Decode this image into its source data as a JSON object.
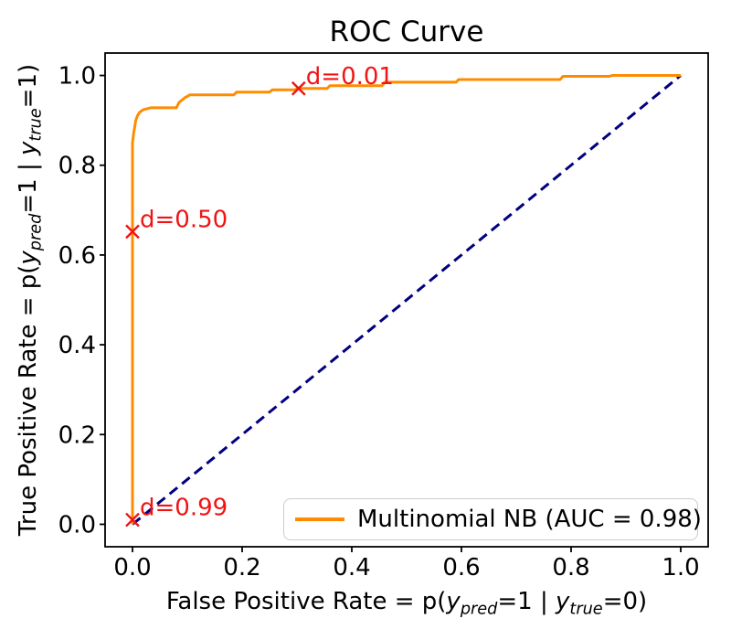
{
  "title": "ROC Curve",
  "colors": {
    "roc_curve": "#ff8c00",
    "chance_line": "#000080",
    "annotation": "#f01414",
    "axis": "#000000",
    "tick_text": "#000000",
    "legend_border": "#cccccc",
    "background": "#ffffff"
  },
  "legend": {
    "label": "Multinomial NB (AUC = 0.98)",
    "position": "lower right"
  },
  "axes": {
    "x_ticks": [
      "0.0",
      "0.2",
      "0.4",
      "0.6",
      "0.8",
      "1.0"
    ],
    "y_ticks": [
      "0.0",
      "0.2",
      "0.4",
      "0.6",
      "0.8",
      "1.0"
    ],
    "xlabel_parts": [
      {
        "t": "False Positive Rate = p(",
        "s": "n"
      },
      {
        "t": "y",
        "s": "i"
      },
      {
        "t": "pred",
        "s": "sub"
      },
      {
        "t": "=1 | ",
        "s": "n"
      },
      {
        "t": "y",
        "s": "i"
      },
      {
        "t": "true",
        "s": "sub"
      },
      {
        "t": "=0)",
        "s": "n"
      }
    ],
    "ylabel_parts": [
      {
        "t": "True Positive Rate = p(",
        "s": "n"
      },
      {
        "t": "y",
        "s": "i"
      },
      {
        "t": "pred",
        "s": "sub"
      },
      {
        "t": "=1 | ",
        "s": "n"
      },
      {
        "t": "y",
        "s": "i"
      },
      {
        "t": "true",
        "s": "sub"
      },
      {
        "t": "=1)",
        "s": "n"
      }
    ]
  },
  "chart_data": {
    "type": "line",
    "title": "ROC Curve",
    "xlabel": "False Positive Rate = p(y_pred=1 | y_true=0)",
    "ylabel": "True Positive Rate = p(y_pred=1 | y_true=1)",
    "xlim": [
      -0.05,
      1.05
    ],
    "ylim": [
      -0.05,
      1.05
    ],
    "grid": false,
    "legend_position": "lower right",
    "tick_values": [
      0.0,
      0.2,
      0.4,
      0.6,
      0.8,
      1.0
    ],
    "series": [
      {
        "name": "Multinomial NB (AUC = 0.98)",
        "color": "#ff8c00",
        "line_style": "solid",
        "points": [
          [
            0.0,
            0.0
          ],
          [
            0.0,
            0.85
          ],
          [
            0.002,
            0.87
          ],
          [
            0.004,
            0.885
          ],
          [
            0.006,
            0.9
          ],
          [
            0.009,
            0.91
          ],
          [
            0.013,
            0.918
          ],
          [
            0.02,
            0.924
          ],
          [
            0.033,
            0.928
          ],
          [
            0.08,
            0.928
          ],
          [
            0.085,
            0.94
          ],
          [
            0.095,
            0.95
          ],
          [
            0.105,
            0.957
          ],
          [
            0.185,
            0.957
          ],
          [
            0.19,
            0.963
          ],
          [
            0.25,
            0.963
          ],
          [
            0.255,
            0.968
          ],
          [
            0.295,
            0.968
          ],
          [
            0.303,
            0.971
          ],
          [
            0.355,
            0.971
          ],
          [
            0.36,
            0.977
          ],
          [
            0.455,
            0.977
          ],
          [
            0.46,
            0.985
          ],
          [
            0.59,
            0.985
          ],
          [
            0.595,
            0.991
          ],
          [
            0.78,
            0.991
          ],
          [
            0.785,
            0.998
          ],
          [
            0.87,
            0.998
          ],
          [
            0.875,
            1.0
          ],
          [
            1.0,
            1.0
          ]
        ]
      },
      {
        "name": "chance",
        "color": "#000080",
        "line_style": "dashed",
        "points": [
          [
            0.0,
            0.0
          ],
          [
            1.0,
            1.0
          ]
        ]
      }
    ],
    "annotations": [
      {
        "label": "d=0.01",
        "x": 0.303,
        "y": 0.971
      },
      {
        "label": "d=0.50",
        "x": 0.0,
        "y": 0.652
      },
      {
        "label": "d=0.99",
        "x": 0.0,
        "y": 0.01
      }
    ]
  }
}
